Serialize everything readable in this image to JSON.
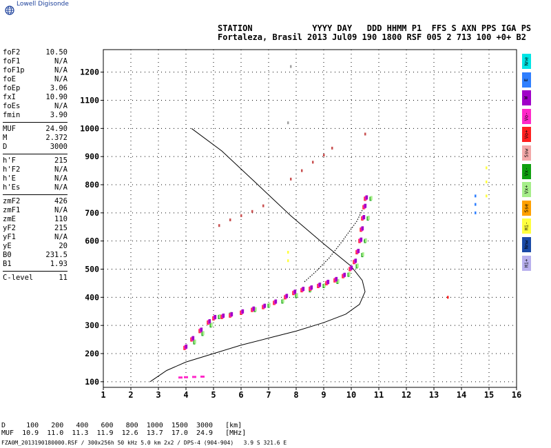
{
  "brand": {
    "name": "Lowell Digisonde",
    "icon": "globe-icon",
    "color": "#1b3f9a"
  },
  "header": {
    "line1": "STATION            YYYY DAY   DDD HHMM P1  FFS S AXN PPS IGA PS",
    "line2": "Fortaleza, Brasil 2013 Jul09 190 1800 RSF 005 2 713 100 +0+ B2"
  },
  "params": [
    [
      {
        "k": "foF2",
        "v": "10.50"
      },
      {
        "k": "foF1",
        "v": "N/A"
      },
      {
        "k": "foF1p",
        "v": "N/A"
      },
      {
        "k": "foE",
        "v": "N/A"
      },
      {
        "k": "foEp",
        "v": "3.06"
      },
      {
        "k": "fxI",
        "v": "10.90"
      },
      {
        "k": "foEs",
        "v": "N/A"
      },
      {
        "k": "fmin",
        "v": "3.90"
      }
    ],
    [
      {
        "k": "MUF",
        "v": "24.90"
      },
      {
        "k": "M",
        "v": "2.372"
      },
      {
        "k": "D",
        "v": "3000"
      }
    ],
    [
      {
        "k": "h'F",
        "v": "215"
      },
      {
        "k": "h'F2",
        "v": "N/A"
      },
      {
        "k": "h'E",
        "v": "N/A"
      },
      {
        "k": "h'Es",
        "v": "N/A"
      }
    ],
    [
      {
        "k": "zmF2",
        "v": "426"
      },
      {
        "k": "zmF1",
        "v": "N/A"
      },
      {
        "k": "zmE",
        "v": "110"
      },
      {
        "k": "yF2",
        "v": "215"
      },
      {
        "k": "yF1",
        "v": "N/A"
      },
      {
        "k": "yE",
        "v": "20"
      },
      {
        "k": "B0",
        "v": "231.5"
      },
      {
        "k": "B1",
        "v": "1.93"
      }
    ],
    [
      {
        "k": "C-level",
        "v": "11"
      }
    ]
  ],
  "legend": [
    {
      "label": "Nne",
      "color": "#00e5e5"
    },
    {
      "label": "E",
      "color": "#2f7fff"
    },
    {
      "label": "W",
      "color": "#a000c8"
    },
    {
      "label": "Vo-",
      "color": "#ff28c8"
    },
    {
      "label": "Vo+",
      "color": "#ff2020"
    },
    {
      "label": "Ssw",
      "color": "#f3a8a8"
    },
    {
      "label": "Vx-",
      "color": "#10a010"
    },
    {
      "label": "Vx+",
      "color": "#a6ee8a"
    },
    {
      "label": "Sse",
      "color": "#ffa000"
    },
    {
      "label": "Hi-",
      "color": "#ffff40"
    },
    {
      "label": "Nnw",
      "color": "#1a4aa8"
    },
    {
      "label": "Hi+",
      "color": "#b8b0ee"
    }
  ],
  "footer": {
    "d_row": "D     100   200   400   600   800  1000  1500  3000   [km]",
    "muf_row": "MUF  10.9  11.0  11.3  11.9  12.6  13.7  17.0  24.9   [MHz]",
    "file": "FZA0M_2013190180000.RSF / 300x256h 50 kHz 5.0 km 2x2 / DPS-4 (904-904)   3.9 S 321.6 E"
  },
  "chart_data": {
    "type": "scatter",
    "xlim": [
      1,
      16
    ],
    "ylim": [
      80,
      1280
    ],
    "xticks": [
      1,
      2,
      3,
      4,
      5,
      6,
      7,
      8,
      9,
      10,
      11,
      12,
      13,
      14,
      15,
      16
    ],
    "yticks": [
      100,
      200,
      300,
      400,
      500,
      600,
      700,
      800,
      900,
      1000,
      1100,
      1200
    ],
    "grid": true,
    "profile": {
      "f": [
        2.7,
        3.3,
        4.0,
        5.0,
        6.0,
        7.0,
        8.0,
        9.0,
        9.8,
        10.3,
        10.5,
        10.4,
        10.0,
        9.0,
        7.8,
        6.5,
        5.3,
        4.2
      ],
      "h": [
        100,
        140,
        170,
        200,
        230,
        255,
        280,
        310,
        340,
        375,
        420,
        460,
        510,
        590,
        690,
        810,
        920,
        1000
      ],
      "color": "#000000"
    },
    "o_trace": {
      "f": [
        3.95,
        4.2,
        4.5,
        4.8,
        5.0,
        5.3,
        5.6,
        6.0,
        6.4,
        6.8,
        7.2,
        7.6,
        7.9,
        8.2,
        8.5,
        8.8,
        9.1,
        9.4,
        9.7,
        9.95,
        10.1,
        10.2,
        10.3,
        10.35,
        10.4,
        10.45,
        10.5
      ],
      "h": [
        220,
        250,
        280,
        310,
        325,
        330,
        335,
        345,
        355,
        365,
        380,
        400,
        415,
        425,
        430,
        440,
        450,
        460,
        475,
        500,
        525,
        560,
        600,
        640,
        680,
        720,
        750
      ],
      "colors": [
        "#ff2020",
        "#ff28c8",
        "#a000c8"
      ]
    },
    "x_trace": {
      "f": [
        4.3,
        4.6,
        4.9,
        5.2,
        5.6,
        6.0,
        6.5,
        7.0,
        7.5,
        8.0,
        8.5,
        9.0,
        9.5,
        9.9,
        10.2,
        10.4,
        10.5,
        10.6,
        10.7
      ],
      "h": [
        240,
        270,
        300,
        330,
        338,
        345,
        355,
        370,
        385,
        405,
        425,
        440,
        455,
        480,
        510,
        550,
        600,
        680,
        750
      ],
      "colors": [
        "#10a010",
        "#a6ee8a"
      ]
    },
    "e_trace": {
      "f": [
        3.8,
        4.0,
        4.3,
        4.6
      ],
      "h": [
        115,
        116,
        117,
        118
      ],
      "color": "#ff28c8"
    },
    "dotted_trace": {
      "f": [
        8.3,
        8.7,
        9.2,
        9.6,
        9.9,
        10.2,
        10.4
      ],
      "h": [
        455,
        490,
        540,
        590,
        630,
        670,
        710
      ],
      "color": "#000000"
    },
    "oblique_echoes": [
      {
        "f": [
          5.2,
          5.6,
          6.0,
          6.4,
          6.8
        ],
        "h": [
          655,
          675,
          690,
          705,
          725
        ],
        "color": "#c85050"
      },
      {
        "f": [
          7.8,
          8.2,
          8.6,
          9.0,
          9.3
        ],
        "h": [
          820,
          850,
          880,
          905,
          930
        ],
        "color": "#c85050"
      },
      {
        "f": [
          7.7,
          7.7
        ],
        "h": [
          530,
          560
        ],
        "color": "#ffff40"
      },
      {
        "f": [
          7.8
        ],
        "h": [
          1220
        ],
        "color": "#a0a0a0"
      },
      {
        "f": [
          7.7
        ],
        "h": [
          1020
        ],
        "color": "#a0a0a0"
      },
      {
        "f": [
          10.5
        ],
        "h": [
          980
        ],
        "color": "#c85050"
      },
      {
        "f": [
          13.5
        ],
        "h": [
          400
        ],
        "color": "#ff2020"
      },
      {
        "f": [
          14.5,
          14.5,
          14.5
        ],
        "h": [
          700,
          730,
          760
        ],
        "color": "#2f7fff"
      },
      {
        "f": [
          14.9,
          14.9,
          14.9
        ],
        "h": [
          760,
          810,
          860
        ],
        "color": "#ffff40"
      }
    ]
  }
}
